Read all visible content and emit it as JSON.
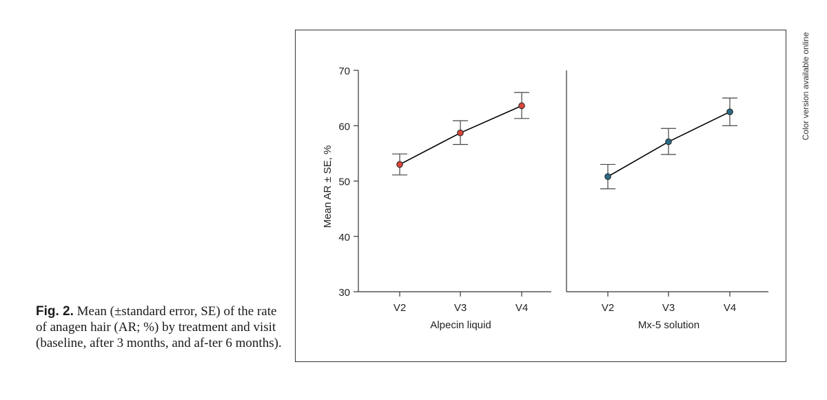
{
  "caption": {
    "label": "Fig. 2.",
    "text": "Mean (±standard error, SE) of the rate of anagen hair (AR; %) by treatment and visit (baseline, after 3 months, and af-ter 6 months)."
  },
  "side_note": "Color version available online",
  "chart_data": {
    "type": "line",
    "ylabel": "Mean AR ± SE, %",
    "ylim": [
      30,
      70
    ],
    "yticks": [
      30,
      40,
      50,
      60,
      70
    ],
    "categories": [
      "V2",
      "V3",
      "V4"
    ],
    "grid": false,
    "panels": [
      {
        "name": "Alpecin liquid",
        "color": "#d9453a",
        "values": [
          53.0,
          58.7,
          63.6
        ],
        "lower": [
          51.1,
          56.6,
          61.3
        ],
        "upper": [
          54.9,
          60.9,
          66.0
        ]
      },
      {
        "name": "Mx-5 solution",
        "color": "#2b6a84",
        "values": [
          50.8,
          57.1,
          62.5
        ],
        "lower": [
          48.6,
          54.8,
          60.0
        ],
        "upper": [
          53.0,
          59.5,
          65.0
        ]
      }
    ]
  }
}
